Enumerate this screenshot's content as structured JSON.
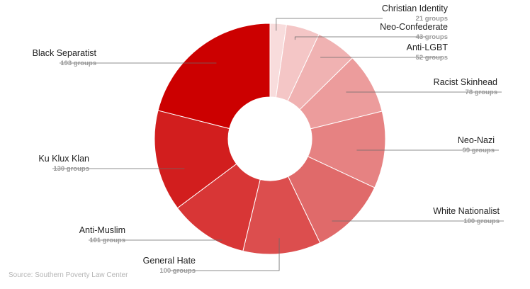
{
  "chart_data": {
    "type": "pie",
    "variant": "donut",
    "title": "",
    "unit_suffix": "groups",
    "slices": [
      {
        "label": "Christian Identity",
        "value": 21,
        "display": "21 groups",
        "color": "#f8dcdc"
      },
      {
        "label": "Neo-Confederate",
        "value": 43,
        "display": "43 groups",
        "color": "#f4c6c6"
      },
      {
        "label": "Anti-LGBT",
        "value": 52,
        "display": "52 groups",
        "color": "#f0b2b2"
      },
      {
        "label": "Racist Skinhead",
        "value": 78,
        "display": "78 groups",
        "color": "#ec9c9c"
      },
      {
        "label": "Neo-Nazi",
        "value": 99,
        "display": "99 groups",
        "color": "#e68282"
      },
      {
        "label": "White Nationalist",
        "value": 100,
        "display": "100 groups",
        "color": "#e06a6a"
      },
      {
        "label": "General Hate",
        "value": 100,
        "display": "100 groups",
        "color": "#dc4e4e"
      },
      {
        "label": "Anti-Muslim",
        "value": 101,
        "display": "101 groups",
        "color": "#d83636"
      },
      {
        "label": "Ku Klux Klan",
        "value": 130,
        "display": "130 groups",
        "color": "#d21e1e"
      },
      {
        "label": "Black Separatist",
        "value": 193,
        "display": "193 groups",
        "color": "#cc0000"
      }
    ]
  },
  "footer": {
    "source": "Source: Southern Poverty Law Center"
  }
}
